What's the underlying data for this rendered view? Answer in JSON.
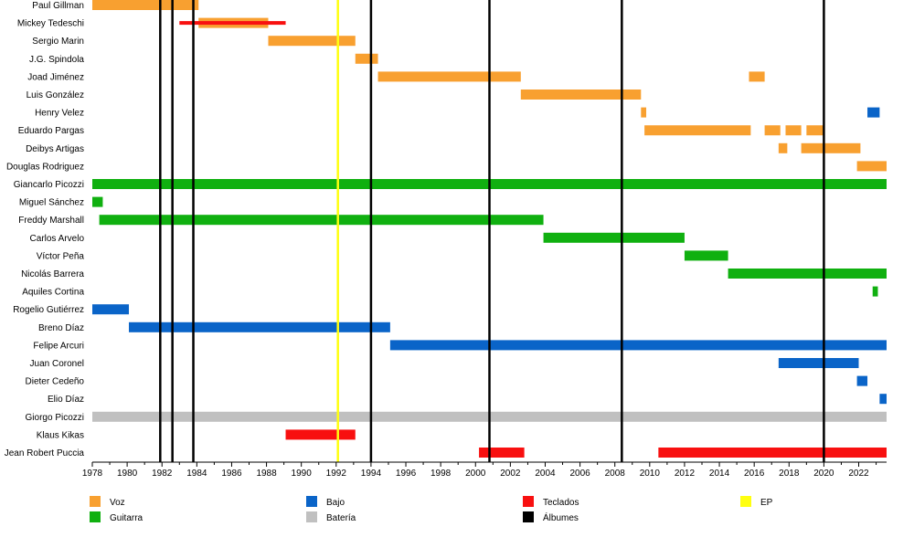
{
  "chart_data": {
    "type": "timeline",
    "x_range": [
      1978,
      2023.6
    ],
    "x_ticks": [
      "1978",
      "1980",
      "1982",
      "1984",
      "1986",
      "1988",
      "1990",
      "1992",
      "1994",
      "1996",
      "1998",
      "2000",
      "2002",
      "2004",
      "2006",
      "2008",
      "2010",
      "2012",
      "2014",
      "2016",
      "2018",
      "2020",
      "2022"
    ],
    "roles": [
      {
        "key": "voz",
        "label": "Voz",
        "color": "#f8a030"
      },
      {
        "key": "guitarra",
        "label": "Guitarra",
        "color": "#10b010"
      },
      {
        "key": "bajo",
        "label": "Bajo",
        "color": "#0a64c8"
      },
      {
        "key": "bateria",
        "label": "Batería",
        "color": "#c0c0c0"
      },
      {
        "key": "teclados",
        "label": "Teclados",
        "color": "#f81010"
      },
      {
        "key": "albumes",
        "label": "Álbumes",
        "color": "#000000"
      },
      {
        "key": "ep",
        "label": "EP",
        "color": "#ffff10"
      }
    ],
    "members": [
      {
        "name": "Paul Gillman",
        "bars": [
          {
            "role": "voz",
            "start": 1978.0,
            "end": 1984.1
          }
        ]
      },
      {
        "name": "Mickey Tedeschi",
        "bars": [
          {
            "role": "voz",
            "start": 1984.1,
            "end": 1988.1
          },
          {
            "role": "teclados",
            "start": 1983.0,
            "end": 1989.1,
            "thin": true
          }
        ]
      },
      {
        "name": "Sergio Marin",
        "bars": [
          {
            "role": "voz",
            "start": 1988.1,
            "end": 1993.1
          }
        ]
      },
      {
        "name": "J.G. Spindola",
        "bars": [
          {
            "role": "voz",
            "start": 1993.1,
            "end": 1994.4
          }
        ]
      },
      {
        "name": "Joad Jiménez",
        "bars": [
          {
            "role": "voz",
            "start": 1994.4,
            "end": 2002.6
          },
          {
            "role": "voz",
            "start": 2015.7,
            "end": 2016.6
          }
        ]
      },
      {
        "name": "Luis González",
        "bars": [
          {
            "role": "voz",
            "start": 2002.6,
            "end": 2009.5
          }
        ]
      },
      {
        "name": "Henry Velez",
        "bars": [
          {
            "role": "voz",
            "start": 2009.5,
            "end": 2009.8
          },
          {
            "role": "bajo",
            "start": 2022.5,
            "end": 2023.2
          }
        ]
      },
      {
        "name": "Eduardo Pargas",
        "bars": [
          {
            "role": "voz",
            "start": 2009.7,
            "end": 2015.8
          },
          {
            "role": "voz",
            "start": 2016.6,
            "end": 2017.5
          },
          {
            "role": "voz",
            "start": 2017.8,
            "end": 2018.7
          },
          {
            "role": "voz",
            "start": 2019.0,
            "end": 2020.0
          }
        ]
      },
      {
        "name": "Deibys Artigas",
        "bars": [
          {
            "role": "voz",
            "start": 2017.4,
            "end": 2017.9
          },
          {
            "role": "voz",
            "start": 2018.7,
            "end": 2022.1
          }
        ]
      },
      {
        "name": "Douglas Rodriguez",
        "bars": [
          {
            "role": "voz",
            "start": 2021.9,
            "end": 2023.6
          }
        ]
      },
      {
        "name": "Giancarlo Picozzi",
        "bars": [
          {
            "role": "guitarra",
            "start": 1978.0,
            "end": 2023.6
          }
        ]
      },
      {
        "name": "Miguel Sánchez",
        "bars": [
          {
            "role": "guitarra",
            "start": 1978.0,
            "end": 1978.6
          }
        ]
      },
      {
        "name": "Freddy Marshall",
        "bars": [
          {
            "role": "guitarra",
            "start": 1978.4,
            "end": 2003.9
          }
        ]
      },
      {
        "name": "Carlos Arvelo",
        "bars": [
          {
            "role": "guitarra",
            "start": 2003.9,
            "end": 2012.0
          }
        ]
      },
      {
        "name": "Víctor Peña",
        "bars": [
          {
            "role": "guitarra",
            "start": 2012.0,
            "end": 2014.5
          }
        ]
      },
      {
        "name": "Nicolás Barrera",
        "bars": [
          {
            "role": "guitarra",
            "start": 2014.5,
            "end": 2023.6
          }
        ]
      },
      {
        "name": "Aquiles Cortina",
        "bars": [
          {
            "role": "guitarra",
            "start": 2022.8,
            "end": 2023.1
          }
        ]
      },
      {
        "name": "Rogelio Gutiérrez",
        "bars": [
          {
            "role": "bajo",
            "start": 1978.0,
            "end": 1980.1
          }
        ]
      },
      {
        "name": "Breno Díaz",
        "bars": [
          {
            "role": "bajo",
            "start": 1980.1,
            "end": 1995.1
          }
        ]
      },
      {
        "name": "Felipe Arcuri",
        "bars": [
          {
            "role": "bajo",
            "start": 1995.1,
            "end": 2023.6
          }
        ]
      },
      {
        "name": "Juan Coronel",
        "bars": [
          {
            "role": "bajo",
            "start": 2017.4,
            "end": 2022.0
          }
        ]
      },
      {
        "name": "Dieter Cedeño",
        "bars": [
          {
            "role": "bajo",
            "start": 2021.9,
            "end": 2022.5
          }
        ]
      },
      {
        "name": "Elio Díaz",
        "bars": [
          {
            "role": "bajo",
            "start": 2023.2,
            "end": 2023.6
          }
        ]
      },
      {
        "name": "Giorgo Picozzi",
        "bars": [
          {
            "role": "bateria",
            "start": 1978.0,
            "end": 2023.6
          }
        ]
      },
      {
        "name": "Klaus Kikas",
        "bars": [
          {
            "role": "teclados",
            "start": 1989.1,
            "end": 1993.1
          }
        ]
      },
      {
        "name": "Jean Robert Puccia",
        "bars": [
          {
            "role": "teclados",
            "start": 2000.2,
            "end": 2002.8
          },
          {
            "role": "teclados",
            "start": 2010.5,
            "end": 2023.6
          }
        ]
      }
    ],
    "albums": [
      1981.9,
      1982.6,
      1983.8,
      1994.0,
      2000.8,
      2008.4,
      2020.0
    ],
    "eps": [
      1992.1
    ]
  }
}
